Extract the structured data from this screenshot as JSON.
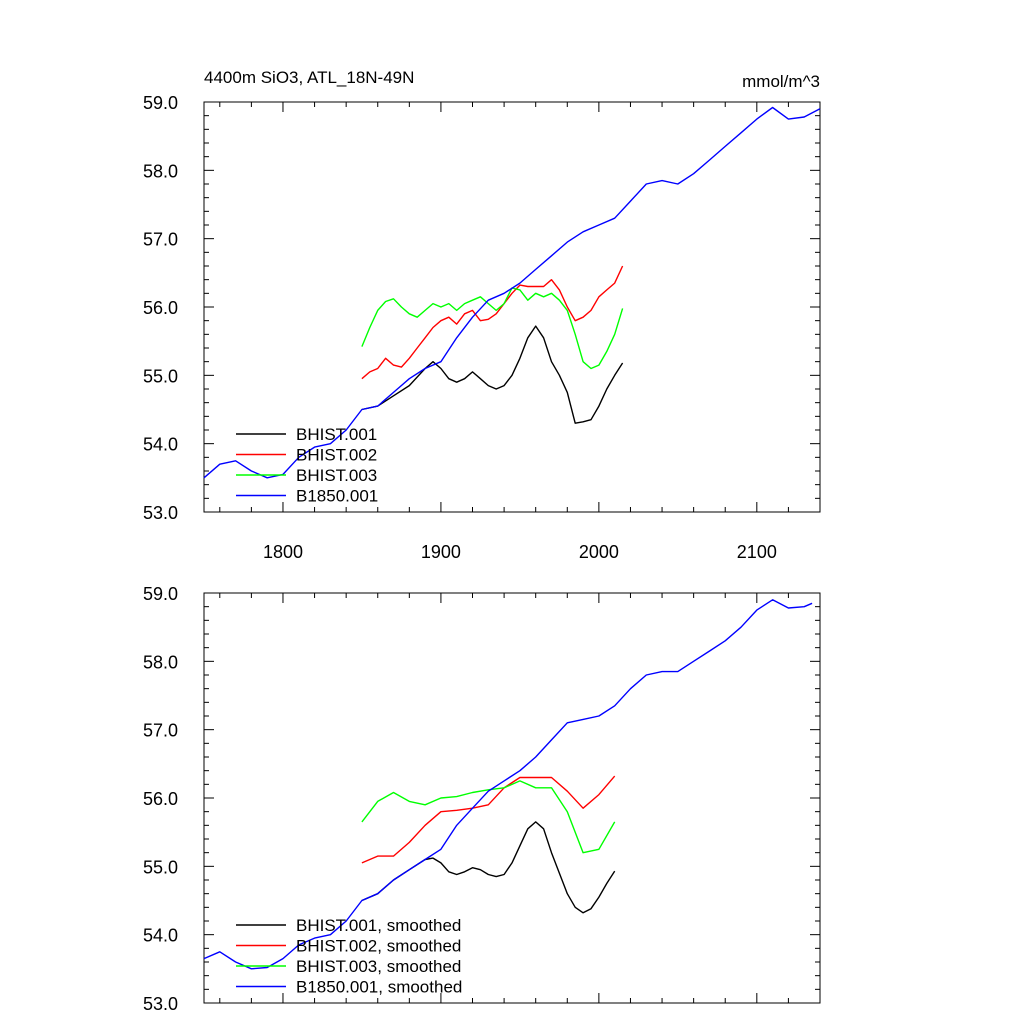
{
  "chart_data": [
    {
      "type": "line",
      "title": "4400m SiO3, ATL_18N-49N",
      "units": "mmol/m^3",
      "xlim": [
        1750,
        2140
      ],
      "ylim": [
        53.0,
        59.0
      ],
      "xticks": [
        1800,
        1900,
        2000,
        2100
      ],
      "xtick_labels": [
        "1800",
        "1900",
        "2000",
        "2100"
      ],
      "yticks": [
        53.0,
        54.0,
        55.0,
        56.0,
        57.0,
        58.0,
        59.0
      ],
      "ytick_labels": [
        "53.0",
        "54.0",
        "55.0",
        "56.0",
        "57.0",
        "58.0",
        "59.0"
      ],
      "legend_position": "bottom-left",
      "series": [
        {
          "name": "BHIST.001",
          "color": "#000000",
          "x": [
            1850,
            1860,
            1870,
            1880,
            1890,
            1895,
            1900,
            1905,
            1910,
            1915,
            1920,
            1925,
            1930,
            1935,
            1940,
            1945,
            1950,
            1955,
            1960,
            1965,
            1970,
            1975,
            1980,
            1985,
            1990,
            1995,
            2000,
            2005,
            2010,
            2015
          ],
          "values": [
            54.5,
            54.55,
            54.7,
            54.85,
            55.1,
            55.2,
            55.1,
            54.95,
            54.9,
            54.95,
            55.05,
            54.95,
            54.85,
            54.8,
            54.85,
            55.0,
            55.25,
            55.55,
            55.72,
            55.55,
            55.2,
            55.0,
            54.75,
            54.3,
            54.32,
            54.35,
            54.55,
            54.8,
            55.0,
            55.18
          ]
        },
        {
          "name": "BHIST.002",
          "color": "#ff0000",
          "x": [
            1850,
            1855,
            1860,
            1865,
            1870,
            1875,
            1880,
            1885,
            1890,
            1895,
            1900,
            1905,
            1910,
            1915,
            1920,
            1925,
            1930,
            1935,
            1940,
            1945,
            1950,
            1955,
            1960,
            1965,
            1970,
            1975,
            1980,
            1985,
            1990,
            1995,
            2000,
            2005,
            2010,
            2015
          ],
          "values": [
            54.95,
            55.05,
            55.1,
            55.25,
            55.15,
            55.12,
            55.25,
            55.4,
            55.55,
            55.7,
            55.8,
            55.85,
            55.75,
            55.9,
            55.95,
            55.8,
            55.82,
            55.9,
            56.05,
            56.2,
            56.32,
            56.3,
            56.3,
            56.3,
            56.4,
            56.25,
            56.0,
            55.8,
            55.85,
            55.95,
            56.15,
            56.25,
            56.35,
            56.6
          ]
        },
        {
          "name": "BHIST.003",
          "color": "#00ff00",
          "x": [
            1850,
            1855,
            1860,
            1865,
            1870,
            1875,
            1880,
            1885,
            1890,
            1895,
            1900,
            1905,
            1910,
            1915,
            1920,
            1925,
            1930,
            1935,
            1940,
            1945,
            1950,
            1955,
            1960,
            1965,
            1970,
            1975,
            1980,
            1985,
            1990,
            1995,
            2000,
            2005,
            2010,
            2015
          ],
          "values": [
            55.42,
            55.7,
            55.95,
            56.08,
            56.12,
            56.0,
            55.9,
            55.85,
            55.95,
            56.05,
            56.0,
            56.05,
            55.95,
            56.05,
            56.1,
            56.15,
            56.05,
            55.95,
            56.05,
            56.28,
            56.25,
            56.1,
            56.2,
            56.15,
            56.2,
            56.1,
            55.95,
            55.6,
            55.2,
            55.1,
            55.15,
            55.35,
            55.6,
            55.98
          ]
        },
        {
          "name": "B1850.001",
          "color": "#0000ff",
          "x": [
            1750,
            1760,
            1770,
            1780,
            1790,
            1800,
            1810,
            1820,
            1830,
            1840,
            1850,
            1860,
            1870,
            1880,
            1890,
            1900,
            1910,
            1920,
            1930,
            1940,
            1950,
            1960,
            1970,
            1980,
            1990,
            2000,
            2010,
            2020,
            2030,
            2040,
            2050,
            2060,
            2070,
            2080,
            2090,
            2100,
            2110,
            2120,
            2130,
            2140
          ],
          "values": [
            53.5,
            53.7,
            53.75,
            53.6,
            53.5,
            53.55,
            53.8,
            53.95,
            54.0,
            54.2,
            54.5,
            54.55,
            54.75,
            54.95,
            55.1,
            55.2,
            55.55,
            55.85,
            56.1,
            56.2,
            56.35,
            56.55,
            56.75,
            56.95,
            57.1,
            57.2,
            57.3,
            57.55,
            57.8,
            57.85,
            57.8,
            57.95,
            58.15,
            58.35,
            58.55,
            58.75,
            58.92,
            58.75,
            58.78,
            58.9
          ]
        }
      ]
    },
    {
      "type": "line",
      "xlim": [
        1750,
        2140
      ],
      "ylim": [
        53.0,
        59.0
      ],
      "xticks": [
        1800,
        1900,
        2000,
        2100
      ],
      "yticks": [
        53.0,
        54.0,
        55.0,
        56.0,
        57.0,
        58.0,
        59.0
      ],
      "ytick_labels": [
        "53.0",
        "54.0",
        "55.0",
        "56.0",
        "57.0",
        "58.0",
        "59.0"
      ],
      "legend_position": "bottom-left",
      "series": [
        {
          "name": "BHIST.001, smoothed",
          "color": "#000000",
          "x": [
            1850,
            1860,
            1870,
            1880,
            1890,
            1895,
            1900,
            1905,
            1910,
            1915,
            1920,
            1925,
            1930,
            1935,
            1940,
            1945,
            1950,
            1955,
            1960,
            1965,
            1970,
            1975,
            1980,
            1985,
            1990,
            1995,
            2000,
            2005,
            2010
          ],
          "values": [
            54.5,
            54.6,
            54.8,
            54.95,
            55.1,
            55.12,
            55.05,
            54.92,
            54.88,
            54.92,
            54.98,
            54.95,
            54.88,
            54.85,
            54.88,
            55.05,
            55.3,
            55.55,
            55.65,
            55.55,
            55.2,
            54.9,
            54.6,
            54.4,
            54.32,
            54.38,
            54.55,
            54.75,
            54.93
          ]
        },
        {
          "name": "BHIST.002, smoothed",
          "color": "#ff0000",
          "x": [
            1850,
            1860,
            1870,
            1880,
            1890,
            1900,
            1910,
            1920,
            1930,
            1940,
            1950,
            1960,
            1970,
            1980,
            1990,
            2000,
            2010
          ],
          "values": [
            55.05,
            55.15,
            55.15,
            55.35,
            55.6,
            55.8,
            55.82,
            55.85,
            55.9,
            56.15,
            56.3,
            56.3,
            56.3,
            56.1,
            55.85,
            56.05,
            56.32
          ]
        },
        {
          "name": "BHIST.003, smoothed",
          "color": "#00ff00",
          "x": [
            1850,
            1860,
            1870,
            1880,
            1890,
            1900,
            1910,
            1920,
            1930,
            1940,
            1950,
            1960,
            1970,
            1980,
            1990,
            2000,
            2010
          ],
          "values": [
            55.65,
            55.95,
            56.08,
            55.95,
            55.9,
            56.0,
            56.02,
            56.08,
            56.12,
            56.15,
            56.25,
            56.15,
            56.15,
            55.8,
            55.2,
            55.25,
            55.65
          ]
        },
        {
          "name": "B1850.001, smoothed",
          "color": "#0000ff",
          "x": [
            1750,
            1760,
            1770,
            1780,
            1790,
            1800,
            1810,
            1820,
            1830,
            1840,
            1850,
            1860,
            1870,
            1880,
            1890,
            1900,
            1910,
            1920,
            1930,
            1940,
            1950,
            1960,
            1970,
            1980,
            1990,
            2000,
            2010,
            2020,
            2030,
            2040,
            2050,
            2060,
            2070,
            2080,
            2090,
            2100,
            2110,
            2120,
            2130,
            2135
          ],
          "values": [
            53.65,
            53.75,
            53.6,
            53.5,
            53.52,
            53.65,
            53.85,
            53.95,
            54.0,
            54.2,
            54.5,
            54.6,
            54.8,
            54.95,
            55.1,
            55.25,
            55.6,
            55.85,
            56.1,
            56.25,
            56.4,
            56.6,
            56.85,
            57.1,
            57.15,
            57.2,
            57.35,
            57.6,
            57.8,
            57.85,
            57.85,
            58.0,
            58.15,
            58.3,
            58.5,
            58.75,
            58.9,
            58.78,
            58.8,
            58.85
          ]
        }
      ]
    }
  ]
}
